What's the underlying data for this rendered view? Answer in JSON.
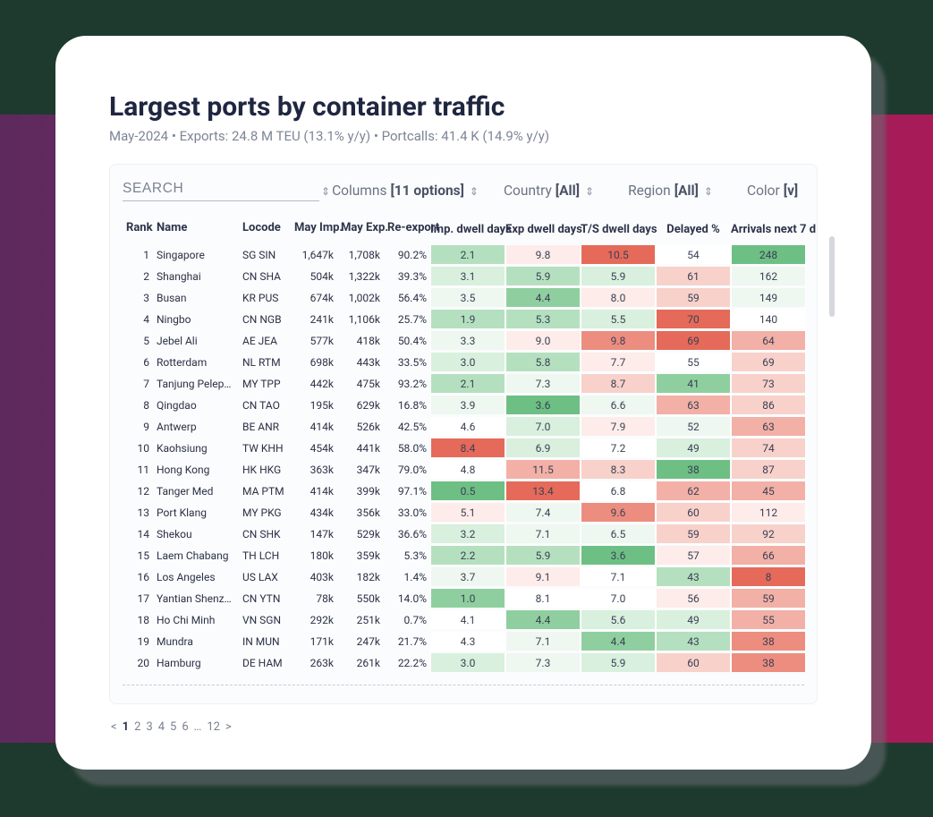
{
  "header": {
    "title": "Largest ports by container traffic",
    "subtitle": "May-2024 • Exports: 24.8 M TEU (13.1% y/y) • Portcalls: 41.4 K (14.9% y/y)"
  },
  "filters": {
    "search_placeholder": "SEARCH",
    "columns_label": "Columns",
    "columns_value": "[11 options]",
    "country_label": "Country",
    "country_value": "[All]",
    "region_label": "Region",
    "region_value": "[All]",
    "color_label": "Color",
    "color_value": "[v]"
  },
  "columns": [
    {
      "key": "rank",
      "label": "Rank",
      "align": "right",
      "cls": "col-rank"
    },
    {
      "key": "name",
      "label": "Name",
      "align": "left",
      "cls": "col-name"
    },
    {
      "key": "locode",
      "label": "Locode",
      "align": "left",
      "cls": "col-locode"
    },
    {
      "key": "mimp",
      "label": "May Imp.",
      "align": "right",
      "cls": "col-mimp"
    },
    {
      "key": "mexp",
      "label": "May Exp.",
      "align": "right",
      "cls": "col-mexp"
    },
    {
      "key": "reexp",
      "label": "Re-export",
      "align": "right",
      "cls": "col-reexp"
    },
    {
      "key": "imp_dd",
      "label": "Imp. dwell days",
      "align": "center",
      "cls": "col-h",
      "heat": "imp"
    },
    {
      "key": "exp_dd",
      "label": "Exp dwell days",
      "align": "center",
      "cls": "col-h",
      "heat": "exp"
    },
    {
      "key": "ts_dd",
      "label": "T/S dwell days",
      "align": "center",
      "cls": "col-h",
      "heat": "ts"
    },
    {
      "key": "delayed",
      "label": "Delayed %",
      "align": "center",
      "cls": "col-h",
      "heat": "del"
    },
    {
      "key": "arr7",
      "label": "Arrivals next 7 d",
      "align": "center",
      "cls": "col-h",
      "heat": "arr"
    }
  ],
  "heat": {
    "palette_green_to_red": [
      "#6dbf84",
      "#8fcf9f",
      "#b5e0bf",
      "#d8f0dd",
      "#eef7f0",
      "#ffffff",
      "#fdecea",
      "#f8d1cb",
      "#f2b0a6",
      "#ec8d7f",
      "#e56a5a"
    ],
    "imp": {
      "min": 0.5,
      "max": 8.4,
      "invert": false
    },
    "exp": {
      "min": 3.6,
      "max": 13.4,
      "invert": false
    },
    "ts": {
      "min": 3.6,
      "max": 10.5,
      "invert": false
    },
    "del": {
      "min": 38,
      "max": 70,
      "invert": false
    },
    "arr": {
      "min": 8,
      "max": 248,
      "invert": true
    }
  },
  "rows": [
    {
      "rank": 1,
      "name": "Singapore",
      "locode": "SG SIN",
      "mimp": "1,647k",
      "mexp": "1,708k",
      "reexp": "90.2%",
      "imp_dd": "2.1",
      "exp_dd": "9.8",
      "ts_dd": "10.5",
      "delayed": "54",
      "arr7": "248"
    },
    {
      "rank": 2,
      "name": "Shanghai",
      "locode": "CN SHA",
      "mimp": "504k",
      "mexp": "1,322k",
      "reexp": "39.3%",
      "imp_dd": "3.1",
      "exp_dd": "5.9",
      "ts_dd": "5.9",
      "delayed": "61",
      "arr7": "162"
    },
    {
      "rank": 3,
      "name": "Busan",
      "locode": "KR PUS",
      "mimp": "674k",
      "mexp": "1,002k",
      "reexp": "56.4%",
      "imp_dd": "3.5",
      "exp_dd": "4.4",
      "ts_dd": "8.0",
      "delayed": "59",
      "arr7": "149"
    },
    {
      "rank": 4,
      "name": "Ningbo",
      "locode": "CN NGB",
      "mimp": "241k",
      "mexp": "1,106k",
      "reexp": "25.7%",
      "imp_dd": "1.9",
      "exp_dd": "5.3",
      "ts_dd": "5.5",
      "delayed": "70",
      "arr7": "140"
    },
    {
      "rank": 5,
      "name": "Jebel Ali",
      "locode": "AE JEA",
      "mimp": "577k",
      "mexp": "418k",
      "reexp": "50.4%",
      "imp_dd": "3.3",
      "exp_dd": "9.0",
      "ts_dd": "9.8",
      "delayed": "69",
      "arr7": "64"
    },
    {
      "rank": 6,
      "name": "Rotterdam",
      "locode": "NL RTM",
      "mimp": "698k",
      "mexp": "443k",
      "reexp": "33.5%",
      "imp_dd": "3.0",
      "exp_dd": "5.8",
      "ts_dd": "7.7",
      "delayed": "55",
      "arr7": "69"
    },
    {
      "rank": 7,
      "name": "Tanjung Pelepas",
      "locode": "MY TPP",
      "mimp": "442k",
      "mexp": "475k",
      "reexp": "93.2%",
      "imp_dd": "2.1",
      "exp_dd": "7.3",
      "ts_dd": "8.7",
      "delayed": "41",
      "arr7": "73"
    },
    {
      "rank": 8,
      "name": "Qingdao",
      "locode": "CN TAO",
      "mimp": "195k",
      "mexp": "629k",
      "reexp": "16.8%",
      "imp_dd": "3.9",
      "exp_dd": "3.6",
      "ts_dd": "6.6",
      "delayed": "63",
      "arr7": "86"
    },
    {
      "rank": 9,
      "name": "Antwerp",
      "locode": "BE ANR",
      "mimp": "414k",
      "mexp": "526k",
      "reexp": "42.5%",
      "imp_dd": "4.6",
      "exp_dd": "7.0",
      "ts_dd": "7.9",
      "delayed": "52",
      "arr7": "63"
    },
    {
      "rank": 10,
      "name": "Kaohsiung",
      "locode": "TW KHH",
      "mimp": "454k",
      "mexp": "441k",
      "reexp": "58.0%",
      "imp_dd": "8.4",
      "exp_dd": "6.9",
      "ts_dd": "7.2",
      "delayed": "49",
      "arr7": "74"
    },
    {
      "rank": 11,
      "name": "Hong Kong",
      "locode": "HK HKG",
      "mimp": "363k",
      "mexp": "347k",
      "reexp": "79.0%",
      "imp_dd": "4.8",
      "exp_dd": "11.5",
      "ts_dd": "8.3",
      "delayed": "38",
      "arr7": "87"
    },
    {
      "rank": 12,
      "name": "Tanger Med",
      "locode": "MA PTM",
      "mimp": "414k",
      "mexp": "399k",
      "reexp": "97.1%",
      "imp_dd": "0.5",
      "exp_dd": "13.4",
      "ts_dd": "6.8",
      "delayed": "62",
      "arr7": "45"
    },
    {
      "rank": 13,
      "name": "Port Klang",
      "locode": "MY PKG",
      "mimp": "434k",
      "mexp": "356k",
      "reexp": "33.0%",
      "imp_dd": "5.1",
      "exp_dd": "7.4",
      "ts_dd": "9.6",
      "delayed": "60",
      "arr7": "112"
    },
    {
      "rank": 14,
      "name": "Shekou",
      "locode": "CN SHK",
      "mimp": "147k",
      "mexp": "529k",
      "reexp": "36.6%",
      "imp_dd": "3.2",
      "exp_dd": "7.1",
      "ts_dd": "6.5",
      "delayed": "59",
      "arr7": "92"
    },
    {
      "rank": 15,
      "name": "Laem Chabang",
      "locode": "TH LCH",
      "mimp": "180k",
      "mexp": "359k",
      "reexp": "5.3%",
      "imp_dd": "2.2",
      "exp_dd": "5.9",
      "ts_dd": "3.6",
      "delayed": "57",
      "arr7": "66"
    },
    {
      "rank": 16,
      "name": "Los Angeles",
      "locode": "US LAX",
      "mimp": "403k",
      "mexp": "182k",
      "reexp": "1.4%",
      "imp_dd": "3.7",
      "exp_dd": "9.1",
      "ts_dd": "7.1",
      "delayed": "43",
      "arr7": "8"
    },
    {
      "rank": 17,
      "name": "Yantian Shenzhen",
      "locode": "CN YTN",
      "mimp": "78k",
      "mexp": "550k",
      "reexp": "14.0%",
      "imp_dd": "1.0",
      "exp_dd": "8.1",
      "ts_dd": "7.0",
      "delayed": "56",
      "arr7": "59"
    },
    {
      "rank": 18,
      "name": "Ho Chi Minh",
      "locode": "VN SGN",
      "mimp": "292k",
      "mexp": "251k",
      "reexp": "0.7%",
      "imp_dd": "4.1",
      "exp_dd": "4.4",
      "ts_dd": "5.6",
      "delayed": "49",
      "arr7": "55"
    },
    {
      "rank": 19,
      "name": "Mundra",
      "locode": "IN MUN",
      "mimp": "171k",
      "mexp": "247k",
      "reexp": "21.7%",
      "imp_dd": "4.3",
      "exp_dd": "7.1",
      "ts_dd": "4.4",
      "delayed": "43",
      "arr7": "38"
    },
    {
      "rank": 20,
      "name": "Hamburg",
      "locode": "DE HAM",
      "mimp": "263k",
      "mexp": "261k",
      "reexp": "22.2%",
      "imp_dd": "3.0",
      "exp_dd": "7.3",
      "ts_dd": "5.9",
      "delayed": "60",
      "arr7": "38"
    }
  ],
  "pager": {
    "prev": "<",
    "next": ">",
    "pages": [
      "1",
      "2",
      "3",
      "4",
      "5",
      "6",
      "…",
      "12"
    ],
    "current_index": 0
  },
  "colors": {
    "title": "#1f2640",
    "subtitle": "#7d8596",
    "filter_text": "#6b7385",
    "panel_bg": "#fbfcfd",
    "panel_border": "#edf0f3",
    "card_bg": "#ffffff",
    "band_left": "#5d2a5e",
    "band_right": "#a81b58",
    "page_bg": "#1e3a2e"
  }
}
